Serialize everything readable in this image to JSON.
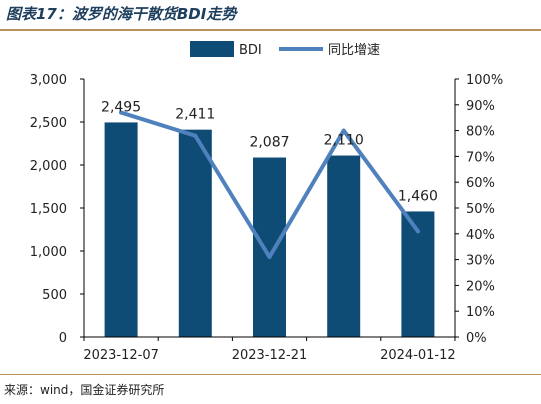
{
  "figure": {
    "title": "图表17：波罗的海干散货BDI走势",
    "source": "来源：wind，国金证券研究所"
  },
  "colors": {
    "bar": "#0f4c75",
    "line": "#4f81bd",
    "rule": "#b9925a"
  },
  "chart_data": {
    "type": "bar+line",
    "title": "",
    "categories": [
      "2023-12-07",
      "",
      "2023-12-21",
      "",
      "2024-01-12"
    ],
    "x_tick_labels": [
      "2023-12-07",
      "2023-12-21",
      "2024-01-12"
    ],
    "series": [
      {
        "name": "BDI",
        "kind": "bar",
        "axis": "left",
        "values": [
          2495,
          2411,
          2087,
          2110,
          1460
        ],
        "value_labels": [
          "2,495",
          "2,411",
          "2,087",
          "2,110",
          "1,460"
        ]
      },
      {
        "name": "同比增速",
        "kind": "line",
        "axis": "right",
        "values": [
          0.87,
          0.78,
          0.31,
          0.8,
          0.41
        ]
      }
    ],
    "y_left": {
      "min": 0,
      "max": 3000,
      "step": 500,
      "tick_labels": [
        "0",
        "500",
        "1,000",
        "1,500",
        "2,000",
        "2,500",
        "3,000"
      ]
    },
    "y_right": {
      "min": 0,
      "max": 1,
      "step": 0.1,
      "tick_labels": [
        "0%",
        "10%",
        "20%",
        "30%",
        "40%",
        "50%",
        "60%",
        "70%",
        "80%",
        "90%",
        "100%"
      ]
    },
    "legend": {
      "position": "top-center",
      "items": [
        "BDI",
        "同比增速"
      ]
    },
    "grid": false
  }
}
